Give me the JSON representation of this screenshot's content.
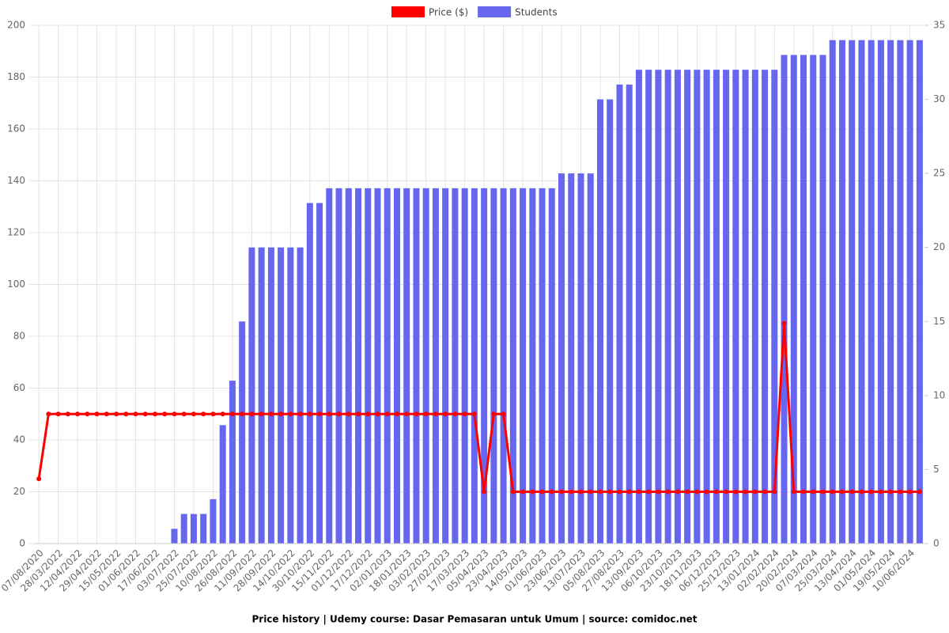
{
  "chart_data": {
    "type": "bar-line",
    "title": "Price history | Udemy course: Dasar Pemasaran untuk Umum | source: comidoc.net",
    "categories": [
      "07/08/2020",
      null,
      "28/03/2022",
      null,
      "12/04/2022",
      null,
      "29/04/2022",
      null,
      "15/05/2022",
      null,
      "01/06/2022",
      null,
      "17/06/2022",
      null,
      "03/07/2022",
      null,
      "25/07/2022",
      null,
      "10/08/2022",
      null,
      "26/08/2022",
      null,
      "11/09/2022",
      null,
      "28/09/2022",
      null,
      "14/10/2022",
      null,
      "30/10/2022",
      null,
      "15/11/2022",
      null,
      "01/12/2022",
      null,
      "17/12/2022",
      null,
      "02/01/2023",
      null,
      "18/01/2023",
      null,
      "03/02/2023",
      null,
      "27/02/2023",
      null,
      "17/03/2023",
      null,
      "05/04/2023",
      null,
      "23/04/2023",
      null,
      "14/05/2023",
      null,
      "01/06/2023",
      null,
      "23/06/2023",
      null,
      "13/07/2023",
      null,
      "05/08/2023",
      null,
      "27/08/2023",
      null,
      "13/09/2023",
      null,
      "06/10/2023",
      null,
      "23/10/2023",
      null,
      "18/11/2023",
      null,
      "06/12/2023",
      null,
      "25/12/2023",
      null,
      "13/01/2024",
      null,
      "02/02/2024",
      null,
      "20/02/2024",
      null,
      "07/03/2024",
      null,
      "25/03/2024",
      null,
      "13/04/2024",
      null,
      "01/05/2024",
      null,
      "19/05/2024",
      null,
      "10/06/2024",
      null
    ],
    "series": [
      {
        "name": "Price ($)",
        "color": "#ff0000",
        "kind": "line",
        "axis": "y",
        "values": [
          25,
          50,
          50,
          50,
          50,
          50,
          50,
          50,
          50,
          50,
          50,
          50,
          50,
          50,
          50,
          50,
          50,
          50,
          50,
          50,
          50,
          50,
          50,
          50,
          50,
          50,
          50,
          50,
          50,
          50,
          50,
          50,
          50,
          50,
          50,
          50,
          50,
          50,
          50,
          50,
          50,
          50,
          50,
          50,
          50,
          50,
          20,
          50,
          50,
          20,
          20,
          20,
          20,
          20,
          20,
          20,
          20,
          20,
          20,
          20,
          20,
          20,
          20,
          20,
          20,
          20,
          20,
          20,
          20,
          20,
          20,
          20,
          20,
          20,
          20,
          20,
          20,
          85,
          20,
          20,
          20,
          20,
          20,
          20,
          20,
          20,
          20,
          20,
          20,
          20,
          20,
          20
        ]
      },
      {
        "name": "Students",
        "color": "#6666ee",
        "kind": "bar",
        "axis": "y2",
        "values": [
          0,
          0,
          0,
          0,
          0,
          0,
          0,
          0,
          0,
          0,
          0,
          0,
          0,
          0,
          1,
          2,
          2,
          2,
          3,
          8,
          11,
          15,
          20,
          20,
          20,
          20,
          20,
          20,
          23,
          23,
          24,
          24,
          24,
          24,
          24,
          24,
          24,
          24,
          24,
          24,
          24,
          24,
          24,
          24,
          24,
          24,
          24,
          24,
          24,
          24,
          24,
          24,
          24,
          24,
          25,
          25,
          25,
          25,
          30,
          30,
          31,
          31,
          32,
          32,
          32,
          32,
          32,
          32,
          32,
          32,
          32,
          32,
          32,
          32,
          32,
          32,
          32,
          33,
          33,
          33,
          33,
          33,
          34,
          34,
          34,
          34,
          34,
          34,
          34,
          34,
          34,
          34
        ]
      }
    ],
    "ylim": [
      0,
      200
    ],
    "yticks": [
      0,
      20,
      40,
      60,
      80,
      100,
      120,
      140,
      160,
      180,
      200
    ],
    "y2lim": [
      0,
      35
    ],
    "y2ticks": [
      0,
      5,
      10,
      15,
      20,
      25,
      30,
      35
    ],
    "grid": true,
    "legend": "top"
  }
}
